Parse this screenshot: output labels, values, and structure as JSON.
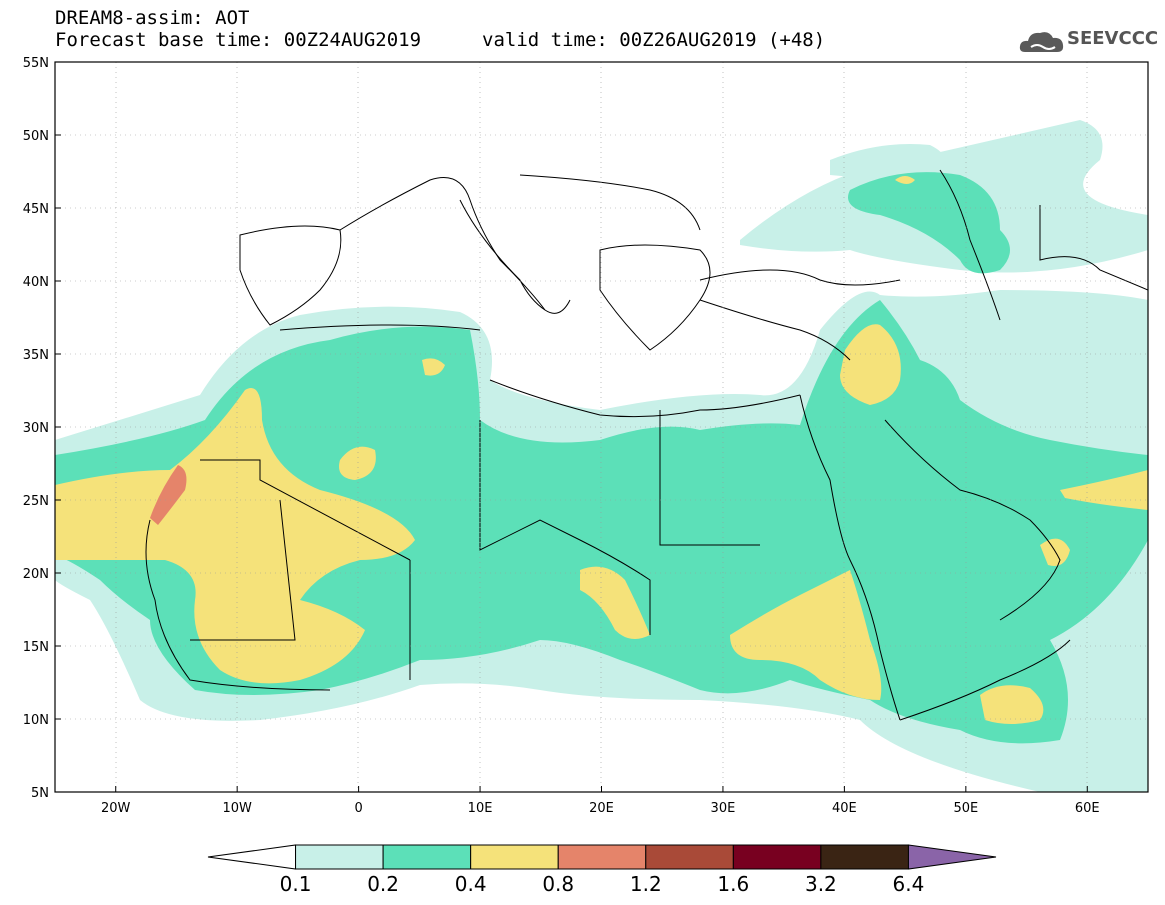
{
  "header": {
    "title_line1": "DREAM8-assim: AOT",
    "title_line2": "Forecast base time: 00Z24AUG2019",
    "valid_time": "valid time: 00Z26AUG2019 (+48)",
    "logo_text": "SEEVCCC",
    "logo_icon": "cloud-logo-icon"
  },
  "map": {
    "lon_range": [
      -25,
      65
    ],
    "lat_range": [
      5,
      55
    ],
    "lat_labels": [
      "55N",
      "50N",
      "45N",
      "40N",
      "35N",
      "30N",
      "25N",
      "20N",
      "15N",
      "10N",
      "5N"
    ],
    "lon_labels": [
      "20W",
      "10W",
      "0",
      "10E",
      "20E",
      "30E",
      "40E",
      "50E",
      "60E"
    ],
    "colors": {
      "c01": "#c8f0e8",
      "c02": "#5ce0b8",
      "c04": "#f5e27a",
      "c08": "#e5846a",
      "ocean": "#ffffff",
      "border": "#000000"
    }
  },
  "colorbar": {
    "labels": [
      "0.1",
      "0.2",
      "0.4",
      "0.8",
      "1.2",
      "1.6",
      "3.2",
      "6.4"
    ],
    "colors": [
      "#ffffff",
      "#c8f0e8",
      "#5ce0b8",
      "#f5e27a",
      "#e5846a",
      "#a94a38",
      "#780020",
      "#3a2414",
      "#8a64a8"
    ]
  }
}
